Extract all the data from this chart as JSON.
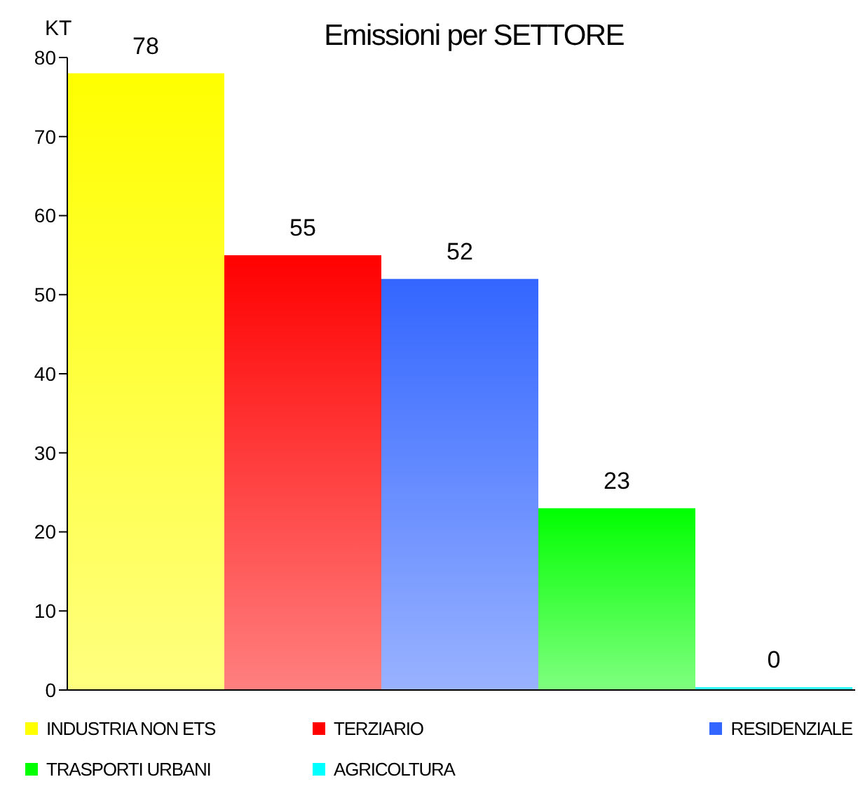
{
  "chart_data": {
    "type": "bar",
    "title": "Emissioni per SETTORE",
    "ylabel": "KT",
    "categories": [
      null
    ],
    "series": [
      {
        "name": "INDUSTRIA NON ETS",
        "color": "#ffff00",
        "values": [
          78
        ]
      },
      {
        "name": "TERZIARIO",
        "color": "#ff0000",
        "values": [
          55
        ]
      },
      {
        "name": "RESIDENZIALE",
        "color": "#3366ff",
        "values": [
          52
        ]
      },
      {
        "name": "TRASPORTI URBANI",
        "color": "#00ff00",
        "values": [
          23
        ]
      },
      {
        "name": "AGRICOLTURA",
        "color": "#00ffff",
        "values": [
          0
        ]
      }
    ],
    "ylim": [
      0,
      80
    ],
    "yticks": [
      0,
      10,
      20,
      30,
      40,
      50,
      60,
      70,
      80
    ],
    "grid": false,
    "legend": "bottom",
    "data_labels": true
  }
}
